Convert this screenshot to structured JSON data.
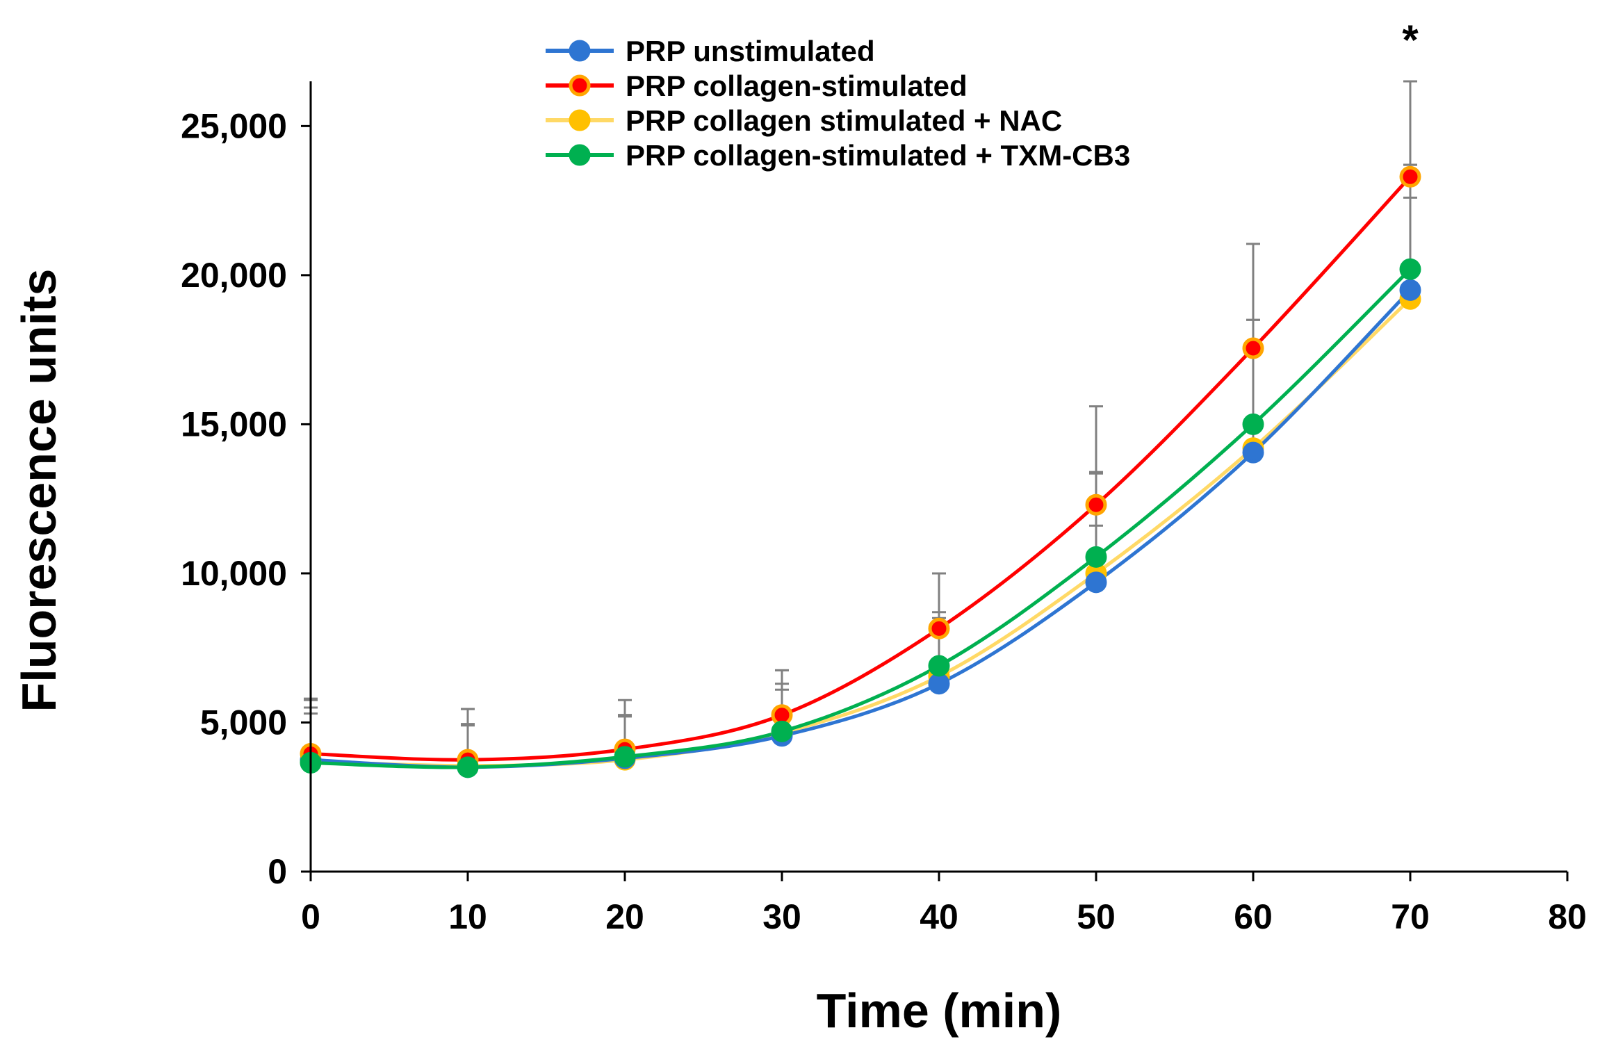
{
  "chart_data": {
    "type": "line",
    "title": "",
    "xlabel": "Time (min)",
    "ylabel": "Fluorescence units",
    "xlim": [
      0,
      80
    ],
    "ylim": [
      0,
      25000
    ],
    "xticks": [
      0,
      10,
      20,
      30,
      40,
      50,
      60,
      70,
      80
    ],
    "xtick_labels": [
      "0",
      "10",
      "20",
      "30",
      "40",
      "50",
      "60",
      "70",
      "80"
    ],
    "yticks": [
      0,
      5000,
      10000,
      15000,
      20000,
      25000
    ],
    "ytick_labels": [
      "0",
      "5,000",
      "10,000",
      "15,000",
      "20,000",
      "25,000"
    ],
    "grid": false,
    "legend_position": "top-center",
    "smooth": true,
    "x": [
      0,
      10,
      20,
      30,
      40,
      50,
      60,
      70
    ],
    "series": [
      {
        "name": "PRP unstimulated",
        "color": "#2E75D2",
        "marker_edge": "#2E75D2",
        "values": [
          3750,
          3500,
          3800,
          4550,
          6300,
          9700,
          14050,
          19500
        ],
        "error": [
          1550,
          1400,
          1400,
          1550,
          2200,
          1900,
          1150,
          3100
        ]
      },
      {
        "name": "PRP collagen-stimulated",
        "color": "#FF0000",
        "marker_edge": "#FFA500",
        "values": [
          3950,
          3750,
          4100,
          5250,
          8150,
          12300,
          17550,
          23300
        ],
        "error": [
          1850,
          1700,
          1650,
          1500,
          1850,
          3300,
          3500,
          3200
        ]
      },
      {
        "name": "PRP collagen stimulated + NAC",
        "color": "#FFD966",
        "marker_edge": "#FFC000",
        "values": [
          3700,
          3550,
          3750,
          4650,
          6550,
          10000,
          14200,
          19200
        ],
        "error": [
          1800,
          1400,
          1500,
          1650,
          1700,
          3400,
          4300,
          4500
        ]
      },
      {
        "name": "PRP collagen-stimulated + TXM-CB3",
        "color": "#00B050",
        "marker_edge": "#00B050",
        "values": [
          3650,
          3500,
          3850,
          4700,
          6900,
          10550,
          15000,
          20200
        ],
        "error": [
          2100,
          1950,
          1400,
          2050,
          1800,
          2800,
          3500,
          3500
        ]
      }
    ],
    "annotations": [
      {
        "text": "*",
        "x": 70
      }
    ]
  }
}
